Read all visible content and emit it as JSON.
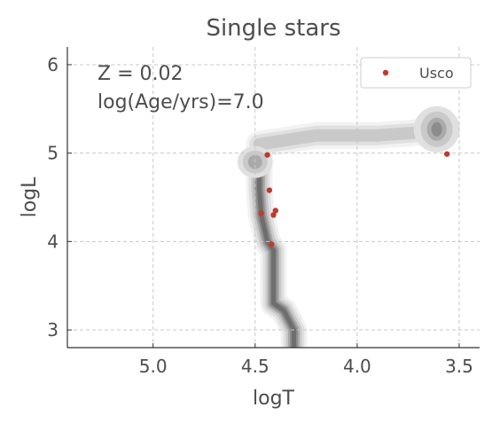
{
  "chart_data": {
    "type": "scatter",
    "title": "Single stars",
    "xlabel": "logT",
    "ylabel": "logL",
    "xlim": [
      5.42,
      3.4
    ],
    "ylim": [
      2.8,
      6.2
    ],
    "x_ticks": [
      5.0,
      4.5,
      4.0,
      3.5
    ],
    "x_tick_labels": [
      "5.0",
      "4.5",
      "4.0",
      "3.5"
    ],
    "y_ticks": [
      3,
      4,
      5,
      6
    ],
    "y_tick_labels": [
      "3",
      "4",
      "5",
      "6"
    ],
    "grid": true,
    "legend_position": "top-right",
    "annotations": [
      "Z = 0.02",
      "log(Age/yrs)=7.0"
    ],
    "series": [
      {
        "name": "Usco",
        "color": "#c0392b",
        "points": [
          {
            "x": 4.44,
            "y": 4.98
          },
          {
            "x": 4.43,
            "y": 4.58
          },
          {
            "x": 4.47,
            "y": 4.32
          },
          {
            "x": 4.4,
            "y": 4.35
          },
          {
            "x": 4.41,
            "y": 4.3
          },
          {
            "x": 4.42,
            "y": 3.97
          },
          {
            "x": 3.56,
            "y": 4.99
          }
        ]
      }
    ],
    "density_contours": {
      "colors": [
        "#f2f2f2",
        "#e0e0e0",
        "#c9c9c9",
        "#aaaaaa",
        "#8c8c8c",
        "#6e6e6e"
      ],
      "note_levels": 6
    }
  }
}
